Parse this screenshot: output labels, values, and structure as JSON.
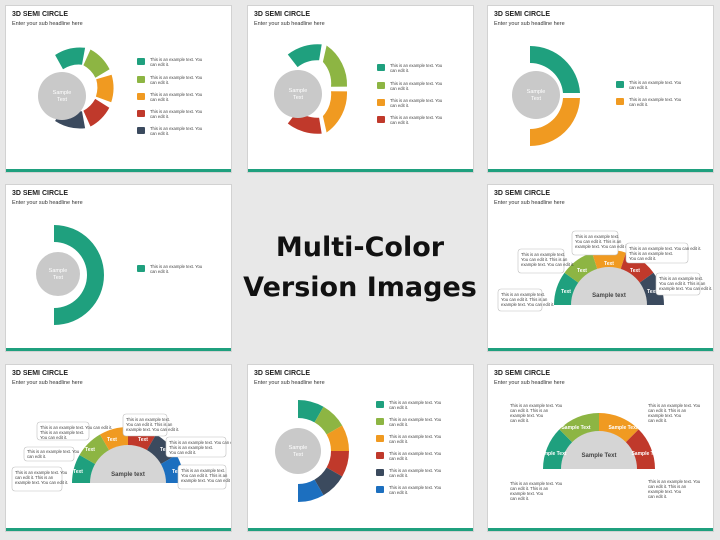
{
  "slide_title": "3D SEMI CIRCLE",
  "slide_subtitle": "Enter your sub headline here",
  "center_text": "Sample Text",
  "legend_text": "This is an example text. You can edit it.",
  "bubble_text": "This is an example text. You can edit it. This is an example text. You can edit it.",
  "segment_label": "Text",
  "half_disc_text": "Sample text",
  "main_heading_line1": "Multi-Color",
  "main_heading_line2": "Version Images",
  "colors": {
    "teal": "#1fa07e",
    "green": "#8db543",
    "orange": "#f09a21",
    "red": "#c0392b",
    "navy": "#3b4a5e",
    "blue": "#1c6fbf",
    "gray_disc": "#c9c9c9"
  }
}
